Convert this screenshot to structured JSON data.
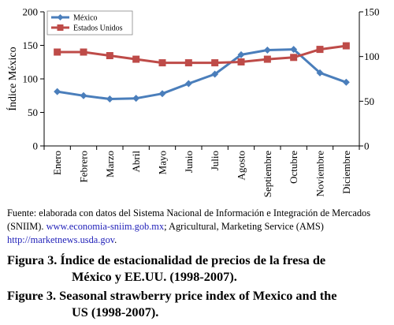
{
  "chart_data": {
    "type": "line",
    "categories": [
      "Enero",
      "Febrero",
      "Marzo",
      "Abril",
      "Mayo",
      "Junio",
      "Julio",
      "Agosto",
      "Septiembre",
      "Octubre",
      "Noviembre",
      "Diciembre"
    ],
    "ylabel": "Índice México",
    "ylim": [
      0,
      200
    ],
    "yticks": [
      "0",
      "50",
      "100",
      "150",
      "200"
    ],
    "y2lim": [
      0,
      150
    ],
    "y2ticks": [
      "0",
      "50",
      "100",
      "150"
    ],
    "legend_position": "top-left",
    "grid": false,
    "series": [
      {
        "name": "México",
        "axis": "left",
        "color": "#4a7ebb",
        "marker": "diamond",
        "values": [
          81,
          75,
          70,
          71,
          78,
          93,
          107,
          136,
          143,
          144,
          109,
          95
        ]
      },
      {
        "name": "Estados Unidos",
        "axis": "right",
        "color": "#be4b48",
        "marker": "square",
        "values": [
          105,
          105,
          101,
          97,
          93,
          93,
          93,
          94,
          97,
          99,
          108,
          112
        ]
      }
    ]
  },
  "source": {
    "prefix": "Fuente: elaborada con datos del Sistema Nacional de Información e Integración de Mercados (SNIIM). ",
    "link1": "www.economia-sniim.gob.mx",
    "middle": "; Agricultural, Marketing Service (AMS) ",
    "link2": "http://marketnews.usda.gov",
    "suffix": "."
  },
  "caption_es": {
    "line1": "Figura 3. Índice de estacionalidad de precios de la fresa de",
    "line2": "México y EE.UU. (1998-2007)."
  },
  "caption_en": {
    "line1": "Figure 3. Seasonal strawberry price index of Mexico and the",
    "line2": "US (1998-2007)."
  }
}
